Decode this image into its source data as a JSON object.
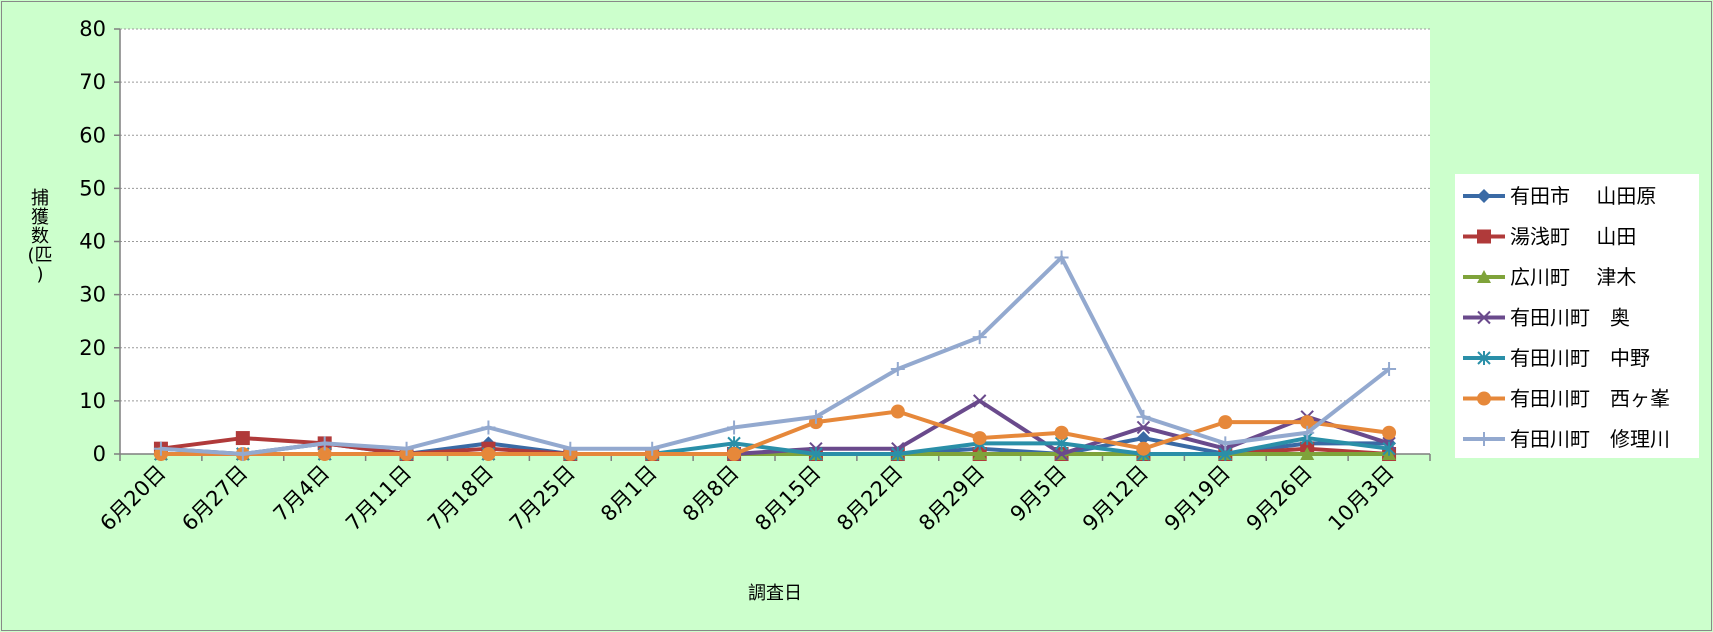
{
  "chart_data": {
    "type": "line",
    "title": "",
    "xlabel": "調査日",
    "ylabel_lines": [
      "捕",
      "獲",
      "数",
      "(匹",
      ")"
    ],
    "ylim": [
      0,
      80
    ],
    "yticks": [
      0,
      10,
      20,
      30,
      40,
      50,
      60,
      70,
      80
    ],
    "grid": "horizontal-dotted",
    "legend_position": "right",
    "categories": [
      "6月20日",
      "6月27日",
      "7月4日",
      "7月11日",
      "7月18日",
      "7月25日",
      "8月1日",
      "8月8日",
      "8月15日",
      "8月22日",
      "8月29日",
      "9月5日",
      "9月12日",
      "9月19日",
      "9月26日",
      "10月3日"
    ],
    "series": [
      {
        "name": "有田市　 山田原",
        "color": "#3a6aa5",
        "marker": "diamond",
        "values": [
          1,
          0,
          2,
          0,
          2,
          0,
          0,
          0,
          0,
          0,
          1,
          0,
          3,
          0,
          2,
          2
        ]
      },
      {
        "name": "湯浅町　 山田",
        "color": "#b03a3a",
        "marker": "square",
        "values": [
          1,
          3,
          2,
          0,
          1,
          0,
          0,
          0,
          0,
          0,
          0,
          0,
          0,
          0,
          1,
          0
        ]
      },
      {
        "name": "広川町　 津木",
        "color": "#7fa33a",
        "marker": "triangle",
        "values": [
          0,
          0,
          0,
          0,
          0,
          0,
          0,
          0,
          0,
          0,
          0,
          0,
          0,
          0,
          0,
          0
        ]
      },
      {
        "name": "有田川町　奥",
        "color": "#6a4a8c",
        "marker": "x",
        "values": [
          0,
          0,
          0,
          0,
          0,
          0,
          0,
          0,
          1,
          1,
          10,
          0,
          5,
          1,
          7,
          2
        ]
      },
      {
        "name": "有田川町　中野",
        "color": "#2a8fa8",
        "marker": "star",
        "values": [
          0,
          0,
          0,
          0,
          0,
          0,
          0,
          2,
          0,
          0,
          2,
          2,
          0,
          0,
          3,
          1
        ]
      },
      {
        "name": "有田川町　西ヶ峯",
        "color": "#e6883a",
        "marker": "circle",
        "values": [
          0,
          0,
          0,
          0,
          0,
          0,
          0,
          0,
          6,
          8,
          3,
          4,
          1,
          6,
          6,
          4
        ]
      },
      {
        "name": "有田川町　修理川",
        "color": "#93a9cf",
        "marker": "plus",
        "values": [
          1,
          0,
          2,
          1,
          5,
          1,
          1,
          5,
          7,
          16,
          22,
          37,
          7,
          2,
          4,
          16
        ]
      }
    ]
  }
}
